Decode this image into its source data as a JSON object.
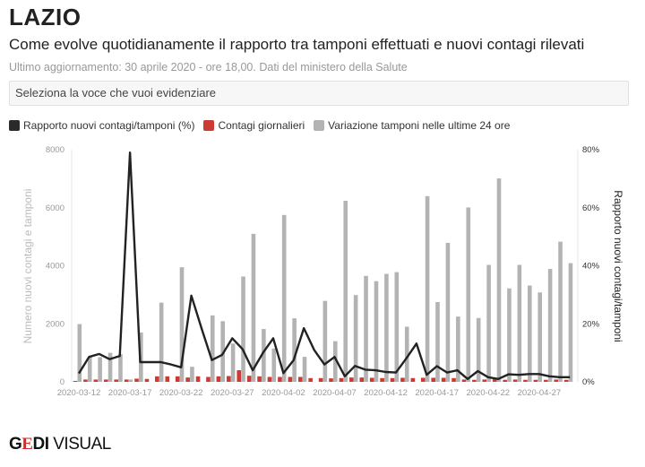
{
  "header": {
    "title": "LAZIO",
    "subtitle": "Come evolve quotidianamente il rapporto tra tamponi effettuati e nuovi contagi rilevati",
    "update": "Ultimo aggiornamento: 30 aprile 2020 - ore 18,00. Dati del ministero della Salute",
    "select_placeholder": "Seleziona la voce che vuoi evidenziare"
  },
  "logo": {
    "g": "G",
    "e": "E",
    "di": "DI",
    "visual": " VISUAL"
  },
  "chart_data": {
    "type": "bar",
    "legend": [
      {
        "label": "Rapporto nuovi contagi/tamponi (%)",
        "color": "#2b2b2b"
      },
      {
        "label": "Contagi giornalieri",
        "color": "#cc3b33"
      },
      {
        "label": "Variazione tamponi nelle ultime 24 ore",
        "color": "#b3b3b3"
      }
    ],
    "legend_position": "top-left",
    "ylabel_left": "Numero nuovi contagi e tamponi",
    "ylabel_right": "Rapporto nuovi contagi/tamponi",
    "ylim_left": [
      0,
      8000
    ],
    "ylim_right": [
      0,
      80
    ],
    "left_ticks": [
      "0",
      "2000",
      "4000",
      "6000",
      "8000"
    ],
    "right_ticks": [
      "0%",
      "20%",
      "40%",
      "60%",
      "80%"
    ],
    "x_ticks": [
      "2020-03-12",
      "2020-03-17",
      "2020-03-22",
      "2020-03-27",
      "2020-04-02",
      "2020-04-07",
      "2020-04-12",
      "2020-04-17",
      "2020-04-22",
      "2020-04-27"
    ],
    "x": [
      "2020-03-12",
      "2020-03-13",
      "2020-03-14",
      "2020-03-15",
      "2020-03-16",
      "2020-03-17",
      "2020-03-18",
      "2020-03-19",
      "2020-03-20",
      "2020-03-21",
      "2020-03-22",
      "2020-03-23",
      "2020-03-24",
      "2020-03-25",
      "2020-03-26",
      "2020-03-27",
      "2020-03-28",
      "2020-03-29",
      "2020-03-31",
      "2020-04-01",
      "2020-04-02",
      "2020-04-03",
      "2020-04-04",
      "2020-04-05",
      "2020-04-06",
      "2020-04-07",
      "2020-04-08",
      "2020-04-09",
      "2020-04-10",
      "2020-04-11",
      "2020-04-12",
      "2020-04-13",
      "2020-04-14",
      "2020-04-15",
      "2020-04-16",
      "2020-04-17",
      "2020-04-18",
      "2020-04-19",
      "2020-04-20",
      "2020-04-21",
      "2020-04-22",
      "2020-04-23",
      "2020-04-24",
      "2020-04-25",
      "2020-04-26",
      "2020-04-27",
      "2020-04-28",
      "2020-04-29",
      "2020-04-30"
    ],
    "series": [
      {
        "name": "Contagi giornalieri",
        "axis": "left",
        "type": "bar",
        "values": [
          30,
          80,
          80,
          80,
          80,
          80,
          110,
          100,
          190,
          190,
          190,
          150,
          190,
          170,
          190,
          200,
          400,
          210,
          190,
          170,
          170,
          170,
          170,
          130,
          130,
          120,
          130,
          150,
          150,
          140,
          130,
          130,
          140,
          130,
          140,
          140,
          140,
          130,
          80,
          70,
          80,
          90,
          70,
          80,
          70,
          70,
          70,
          80,
          70
        ]
      },
      {
        "name": "Variazione tamponi nelle ultime 24 ore",
        "axis": "left",
        "type": "bar",
        "values": [
          1990,
          850,
          850,
          1000,
          960,
          80,
          1700,
          0,
          2730,
          0,
          3950,
          520,
          0,
          2290,
          2090,
          1320,
          3630,
          5100,
          1820,
          1150,
          5750,
          2190,
          860,
          0,
          2790,
          1400,
          6240,
          2990,
          3650,
          3470,
          3720,
          3780,
          1900,
          0,
          6400,
          2750,
          4790,
          2250,
          6010,
          2200,
          4030,
          7010,
          3220,
          4030,
          3320,
          3080,
          3890,
          4830,
          4090
        ]
      },
      {
        "name": "Rapporto nuovi contagi/tamponi (%)",
        "axis": "right",
        "type": "line",
        "values": [
          2.9,
          8.6,
          9.6,
          7.8,
          8.9,
          79,
          6.8,
          6.8,
          6.8,
          6,
          5,
          29.7,
          18.4,
          7.5,
          9.3,
          15,
          11.3,
          4,
          10,
          15,
          3,
          7.5,
          18.5,
          11,
          6,
          8.6,
          1.9,
          5.5,
          4.2,
          4,
          3.4,
          3.2,
          8,
          13.2,
          2.4,
          5.4,
          3.2,
          4,
          1,
          3.7,
          1.6,
          1,
          2.6,
          2.4,
          2.7,
          2.7,
          1.9,
          1.6,
          1.6
        ]
      }
    ]
  }
}
